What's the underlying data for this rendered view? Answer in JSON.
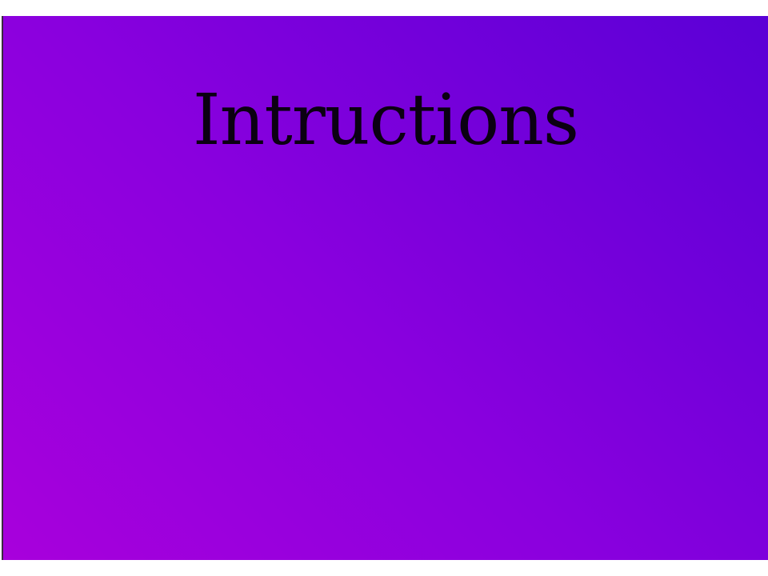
{
  "screen": {
    "title": "Intructions",
    "colors": {
      "background_gradient_start": "#a800dc",
      "background_gradient_end": "#5a00d6",
      "title_color": "#0b0012"
    }
  }
}
